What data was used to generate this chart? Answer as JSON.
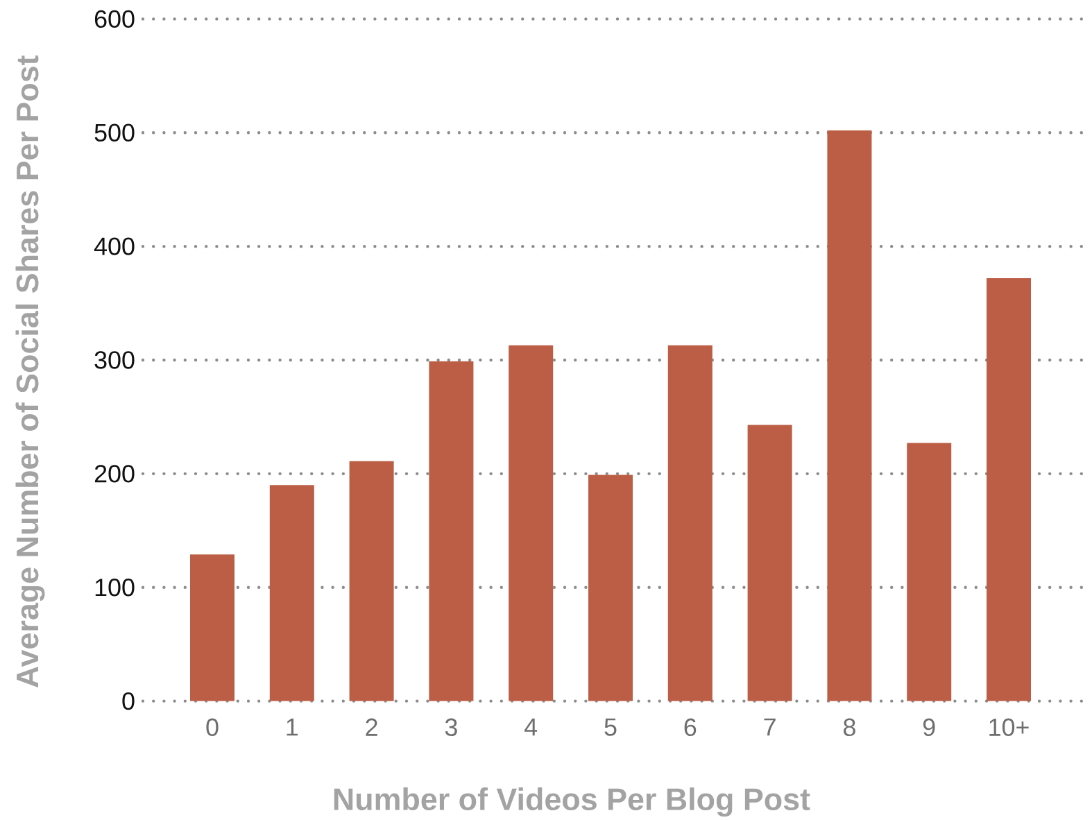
{
  "chart_data": {
    "type": "bar",
    "xlabel": "Number of Videos Per Blog Post",
    "ylabel": "Average Number of Social Shares Per Post",
    "categories": [
      "0",
      "1",
      "2",
      "3",
      "4",
      "5",
      "6",
      "7",
      "8",
      "9",
      "10+"
    ],
    "values": [
      129,
      190,
      211,
      299,
      313,
      199,
      313,
      243,
      502,
      227,
      372
    ],
    "color": "#bc5e45",
    "ylim": [
      0,
      600
    ],
    "yticks": [
      0,
      100,
      200,
      300,
      400,
      500,
      600
    ],
    "grid": "y"
  }
}
